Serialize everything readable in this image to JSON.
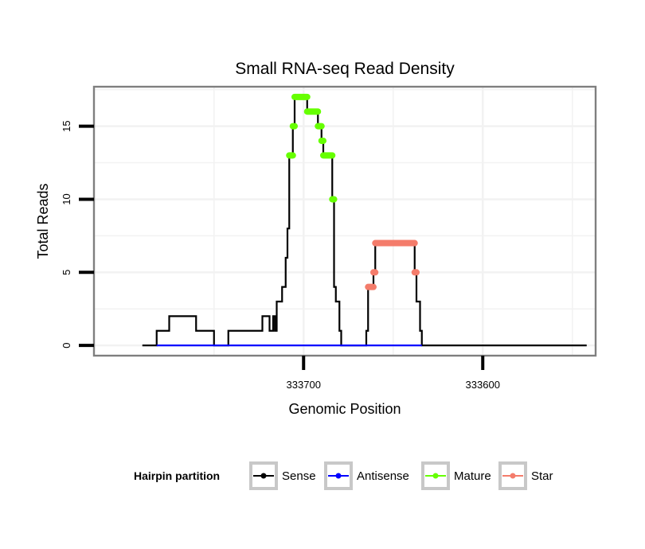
{
  "chart_data": {
    "type": "line",
    "title": "Small RNA-seq Read Density",
    "xlabel": "Genomic Position",
    "ylabel": "Total Reads",
    "x_reversed": true,
    "xlim": [
      333817,
      333537
    ],
    "ylim": [
      -0.7,
      17.7
    ],
    "xticks": [
      333700,
      333600
    ],
    "xtick_labels": [
      "333700",
      "333600"
    ],
    "yticks": [
      0,
      5,
      10,
      15
    ],
    "ytick_labels": [
      "0",
      "5",
      "10",
      "15"
    ],
    "colors": {
      "Sense": "#000000",
      "Antisense": "#0000ff",
      "Mature": "#66ff00",
      "Star": "#f47c6b",
      "panel_border": "#7f7f7f",
      "gridline": "#f2f2f2",
      "legend_key_border": "#c8c8c8"
    },
    "legend": {
      "title": "Hairpin partition",
      "position": "bottom",
      "entries": [
        "Sense",
        "Antisense",
        "Mature",
        "Star"
      ]
    },
    "series": [
      {
        "name": "Sense",
        "style": "line",
        "points": [
          [
            333790,
            0
          ],
          [
            333782,
            0
          ],
          [
            333782,
            1
          ],
          [
            333775,
            1
          ],
          [
            333775,
            2
          ],
          [
            333760,
            2
          ],
          [
            333760,
            1
          ],
          [
            333750,
            1
          ],
          [
            333750,
            0
          ],
          [
            333742,
            0
          ],
          [
            333742,
            1
          ],
          [
            333723,
            1
          ],
          [
            333723,
            2
          ],
          [
            333719,
            2
          ],
          [
            333719,
            1
          ],
          [
            333717,
            1
          ],
          [
            333717,
            2
          ],
          [
            333716,
            2
          ],
          [
            333716,
            1
          ],
          [
            333715,
            1
          ],
          [
            333715,
            3
          ],
          [
            333712,
            3
          ],
          [
            333712,
            4
          ],
          [
            333710,
            4
          ],
          [
            333710,
            6
          ],
          [
            333709,
            6
          ],
          [
            333709,
            8
          ],
          [
            333708,
            8
          ],
          [
            333708,
            13
          ],
          [
            333706,
            13
          ],
          [
            333706,
            15
          ],
          [
            333705,
            15
          ],
          [
            333705,
            17
          ],
          [
            333698,
            17
          ],
          [
            333698,
            16
          ],
          [
            333692,
            16
          ],
          [
            333692,
            15
          ],
          [
            333690,
            15
          ],
          [
            333690,
            14
          ],
          [
            333689,
            14
          ],
          [
            333689,
            13
          ],
          [
            333684,
            13
          ],
          [
            333684,
            10
          ],
          [
            333683,
            10
          ],
          [
            333683,
            4
          ],
          [
            333682,
            4
          ],
          [
            333682,
            3
          ],
          [
            333680,
            3
          ],
          [
            333680,
            1
          ],
          [
            333679,
            1
          ],
          [
            333679,
            0
          ],
          [
            333665,
            0
          ],
          [
            333665,
            1
          ],
          [
            333664,
            1
          ],
          [
            333664,
            4
          ],
          [
            333661,
            4
          ],
          [
            333661,
            5
          ],
          [
            333660,
            5
          ],
          [
            333660,
            7
          ],
          [
            333638,
            7
          ],
          [
            333638,
            5
          ],
          [
            333637,
            5
          ],
          [
            333637,
            3
          ],
          [
            333635,
            3
          ],
          [
            333635,
            1
          ],
          [
            333634,
            1
          ],
          [
            333634,
            0
          ],
          [
            333542,
            0
          ]
        ]
      },
      {
        "name": "Antisense",
        "style": "line",
        "points": [
          [
            333782,
            0
          ],
          [
            333634,
            0
          ]
        ]
      },
      {
        "name": "Mature",
        "style": "points",
        "segments": [
          {
            "from": 333708,
            "to": 333706,
            "y": 13
          },
          {
            "from": 333706,
            "to": 333705,
            "y": 15
          },
          {
            "from": 333705,
            "to": 333698,
            "y": 17
          },
          {
            "from": 333698,
            "to": 333692,
            "y": 16
          },
          {
            "from": 333692,
            "to": 333690,
            "y": 15
          },
          {
            "from": 333690,
            "to": 333689,
            "y": 14
          },
          {
            "from": 333689,
            "to": 333684,
            "y": 13
          },
          {
            "from": 333684,
            "to": 333683,
            "y": 10
          }
        ]
      },
      {
        "name": "Star",
        "style": "points",
        "segments": [
          {
            "from": 333664,
            "to": 333661,
            "y": 4
          },
          {
            "from": 333661,
            "to": 333660,
            "y": 5
          },
          {
            "from": 333660,
            "to": 333638,
            "y": 7
          },
          {
            "from": 333638,
            "to": 333637,
            "y": 5
          }
        ]
      }
    ]
  }
}
